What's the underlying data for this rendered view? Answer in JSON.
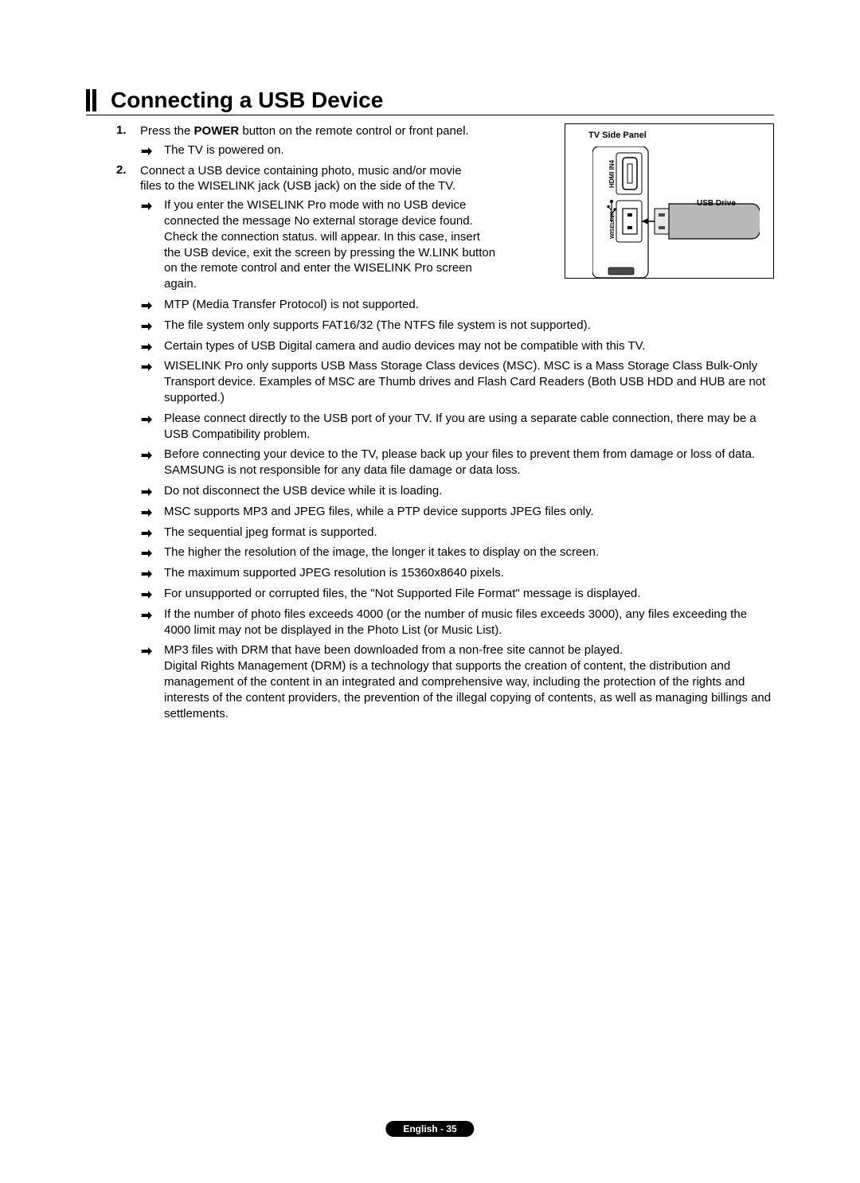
{
  "heading": "Connecting a USB Device",
  "figure": {
    "title": "TV Side Panel",
    "usb_label": "USB Drive",
    "port_hdmi": "HDMI IN4",
    "port_wiselink": "WISELINK"
  },
  "steps": [
    {
      "num": "1.",
      "text_parts": [
        "Press the ",
        "POWER",
        " button on the remote control or front panel."
      ],
      "bold_index": 1,
      "sub_bullets": [
        "The TV is powered on."
      ]
    },
    {
      "num": "2.",
      "text_parts": [
        "Connect a USB device containing photo, music and/or movie files to the WISELINK jack (USB jack) on the side of the TV."
      ],
      "sub_bullets": []
    }
  ],
  "main_bullets": [
    {
      "parts": [
        "If you enter the WISELINK Pro mode with no USB device connected the message No external storage device found. Check the connection status. will appear. In this case, insert the USB device, exit the screen by pressing the ",
        "W.LINK",
        " button on the remote control and enter the WISELINK Pro screen again."
      ],
      "bold_index": 1,
      "narrow": true
    },
    {
      "parts": [
        "MTP (Media Transfer Protocol) is not supported."
      ]
    },
    {
      "parts": [
        "The file system only supports FAT16/32 (The NTFS file system is not supported)."
      ]
    },
    {
      "parts": [
        "Certain types of USB Digital camera and audio devices may not be compatible with this TV."
      ]
    },
    {
      "parts": [
        "WISELINK Pro only supports USB Mass Storage Class devices (MSC). MSC is a Mass Storage Class Bulk-Only Transport device. Examples of MSC are Thumb drives and Flash Card Readers (Both USB HDD and HUB are not supported.)"
      ]
    },
    {
      "parts": [
        "Please connect directly to the USB port of your TV. If you are using a separate cable connection, there may be a USB Compatibility problem."
      ]
    },
    {
      "parts": [
        "Before connecting your device to the TV, please back up your files to prevent them from damage or loss of data. SAMSUNG is not responsible for any data file damage or data loss."
      ]
    },
    {
      "parts": [
        "Do not disconnect the USB device while it is loading."
      ]
    },
    {
      "parts": [
        "MSC supports MP3 and JPEG files, while a PTP device supports JPEG files only."
      ]
    },
    {
      "parts": [
        "The sequential jpeg format is supported."
      ]
    },
    {
      "parts": [
        "The higher the resolution of the image, the longer it takes to display on the screen."
      ]
    },
    {
      "parts": [
        "The maximum supported JPEG resolution is 15360x8640 pixels."
      ]
    },
    {
      "parts": [
        "For unsupported or corrupted files, the \"Not Supported File Format\" message is displayed."
      ]
    },
    {
      "parts": [
        "If the number of photo files exceeds 4000 (or the number of music files exceeds 3000), any files exceeding the 4000 limit may not be displayed in the Photo List (or Music List)."
      ]
    },
    {
      "parts": [
        "MP3 files with DRM that have been downloaded from a non-free site cannot be played.\nDigital Rights Management (DRM) is a technology that supports the creation of content, the distribution and management of the content in an integrated and comprehensive way, including the protection of the rights and interests of the content providers, the prevention of the illegal copying of contents, as well as managing billings and settlements."
      ]
    }
  ],
  "footer": "English - 35",
  "colors": {
    "text": "#000000",
    "background": "#ffffff",
    "footer_bg": "#000000",
    "footer_text": "#ffffff",
    "usb_fill": "#b8b8b8",
    "panel_fill": "#d6d6d6"
  }
}
